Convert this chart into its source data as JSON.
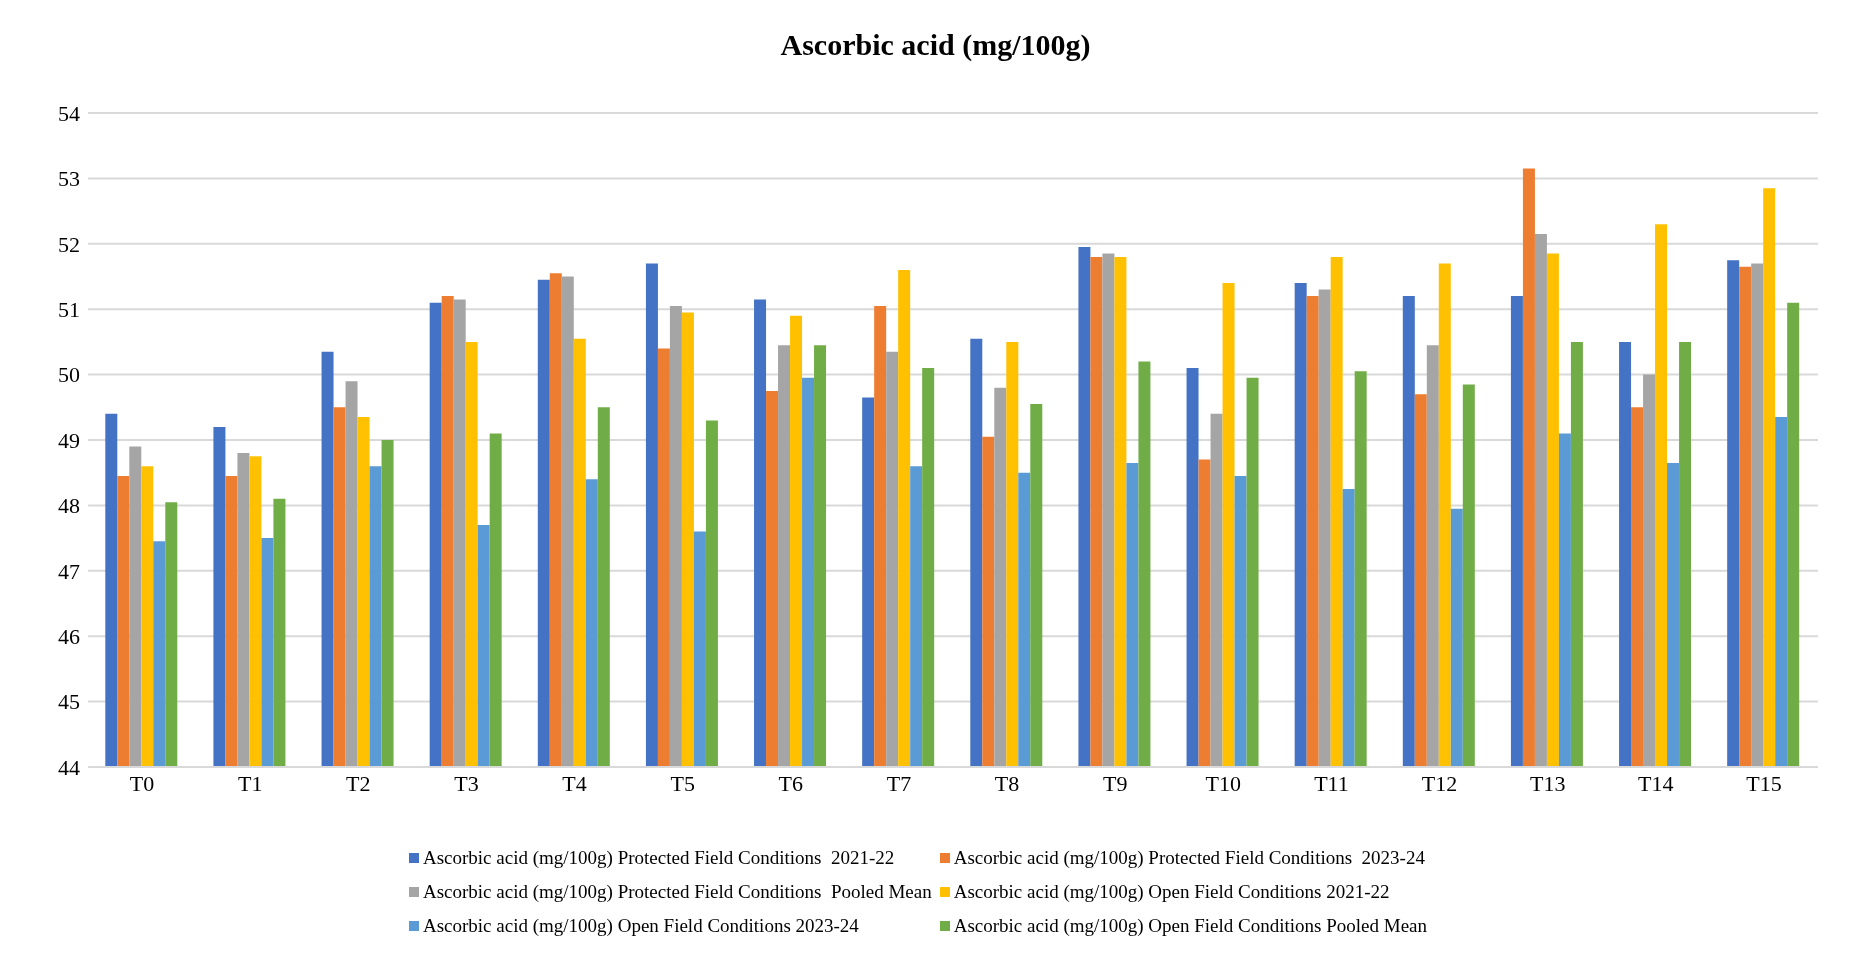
{
  "chart_data": {
    "type": "bar",
    "title": "Ascorbic acid (mg/100g)",
    "categories": [
      "T0",
      "T1",
      "T2",
      "T3",
      "T4",
      "T5",
      "T6",
      "T7",
      "T8",
      "T9",
      "T10",
      "T11",
      "T12",
      "T13",
      "T14",
      "T15"
    ],
    "series": [
      {
        "name": "Ascorbic acid (mg/100g) Protected Field Conditions  2021-22",
        "color": "#4472c4",
        "values": [
          49.4,
          49.2,
          50.35,
          51.1,
          51.45,
          51.7,
          51.15,
          49.65,
          50.55,
          51.95,
          50.1,
          51.4,
          51.2,
          51.2,
          50.5,
          51.75
        ]
      },
      {
        "name": "Ascorbic acid (mg/100g) Protected Field Conditions  2023-24",
        "color": "#ed7d31",
        "values": [
          48.45,
          48.45,
          49.5,
          51.2,
          51.55,
          50.4,
          49.75,
          51.05,
          49.05,
          51.8,
          48.7,
          51.2,
          49.7,
          53.15,
          49.5,
          51.65
        ]
      },
      {
        "name": "Ascorbic acid (mg/100g) Protected Field Conditions  Pooled Mean",
        "color": "#a5a5a5",
        "values": [
          48.9,
          48.8,
          49.9,
          51.15,
          51.5,
          51.05,
          50.45,
          50.35,
          49.8,
          51.85,
          49.4,
          51.3,
          50.45,
          52.15,
          50.0,
          51.7
        ]
      },
      {
        "name": "Ascorbic acid (mg/100g) Open Field Conditions 2021-22",
        "color": "#ffc000",
        "values": [
          48.6,
          48.75,
          49.35,
          50.5,
          50.55,
          50.95,
          50.9,
          51.6,
          50.5,
          51.8,
          51.4,
          51.8,
          51.7,
          51.85,
          52.3,
          52.85
        ]
      },
      {
        "name": "Ascorbic acid (mg/100g) Open Field Conditions 2023-24",
        "color": "#5b9bd5",
        "values": [
          47.45,
          47.5,
          48.6,
          47.7,
          48.4,
          47.6,
          49.95,
          48.6,
          48.5,
          48.65,
          48.45,
          48.25,
          47.95,
          49.1,
          48.65,
          49.35
        ]
      },
      {
        "name": "Ascorbic acid (mg/100g) Open Field Conditions Pooled Mean",
        "color": "#70ad47",
        "values": [
          48.05,
          48.1,
          49.0,
          49.1,
          49.5,
          49.3,
          50.45,
          50.1,
          49.55,
          50.2,
          49.95,
          50.05,
          49.85,
          50.5,
          50.5,
          51.1
        ]
      }
    ],
    "ylim": [
      44,
      54
    ],
    "yticks": [
      44,
      45,
      46,
      47,
      48,
      49,
      50,
      51,
      52,
      53,
      54
    ],
    "grid": "y",
    "legend": "bottom"
  }
}
